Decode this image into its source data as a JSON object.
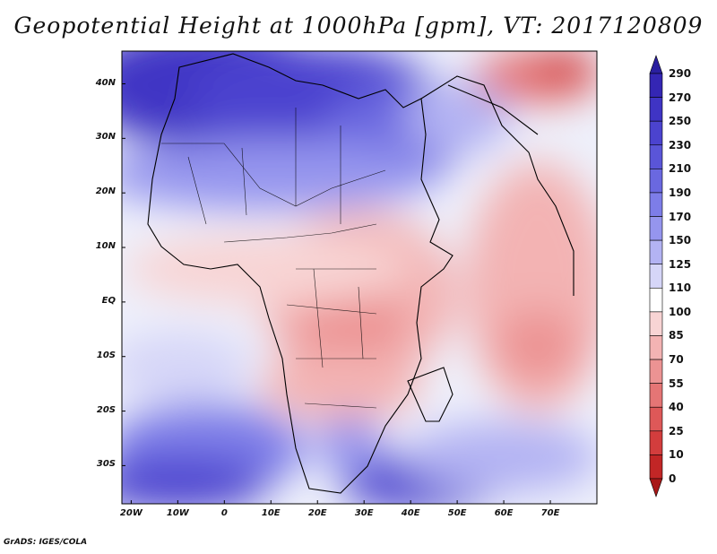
{
  "title": "Geopotential Height at 1000hPa [gpm], VT: 2017120809",
  "footer": "GrADS: IGES/COLA",
  "map": {
    "projection": "lat-lon",
    "lon_range": [
      -22,
      80
    ],
    "lat_range": [
      -37,
      46
    ],
    "lon_ticks": [
      "20W",
      "10W",
      "0",
      "10E",
      "20E",
      "30E",
      "40E",
      "50E",
      "60E",
      "70E"
    ],
    "lat_ticks": [
      "40N",
      "30N",
      "20N",
      "10N",
      "EQ",
      "10S",
      "20S",
      "30S"
    ]
  },
  "colorbar": {
    "labels": [
      "290",
      "270",
      "250",
      "230",
      "210",
      "190",
      "170",
      "150",
      "125",
      "110",
      "100",
      "85",
      "70",
      "55",
      "40",
      "25",
      "10",
      "0"
    ],
    "colors": [
      "#2a1fa0",
      "#3426b4",
      "#3f34c4",
      "#4b43cf",
      "#5a55d8",
      "#6a68e0",
      "#7d7de8",
      "#9595ee",
      "#b3b3f3",
      "#d6d6f8",
      "#ffffff",
      "#f8d4d4",
      "#f3b3b3",
      "#ec9393",
      "#e57575",
      "#de5858",
      "#d33d3d",
      "#c22626",
      "#a81818"
    ]
  }
}
